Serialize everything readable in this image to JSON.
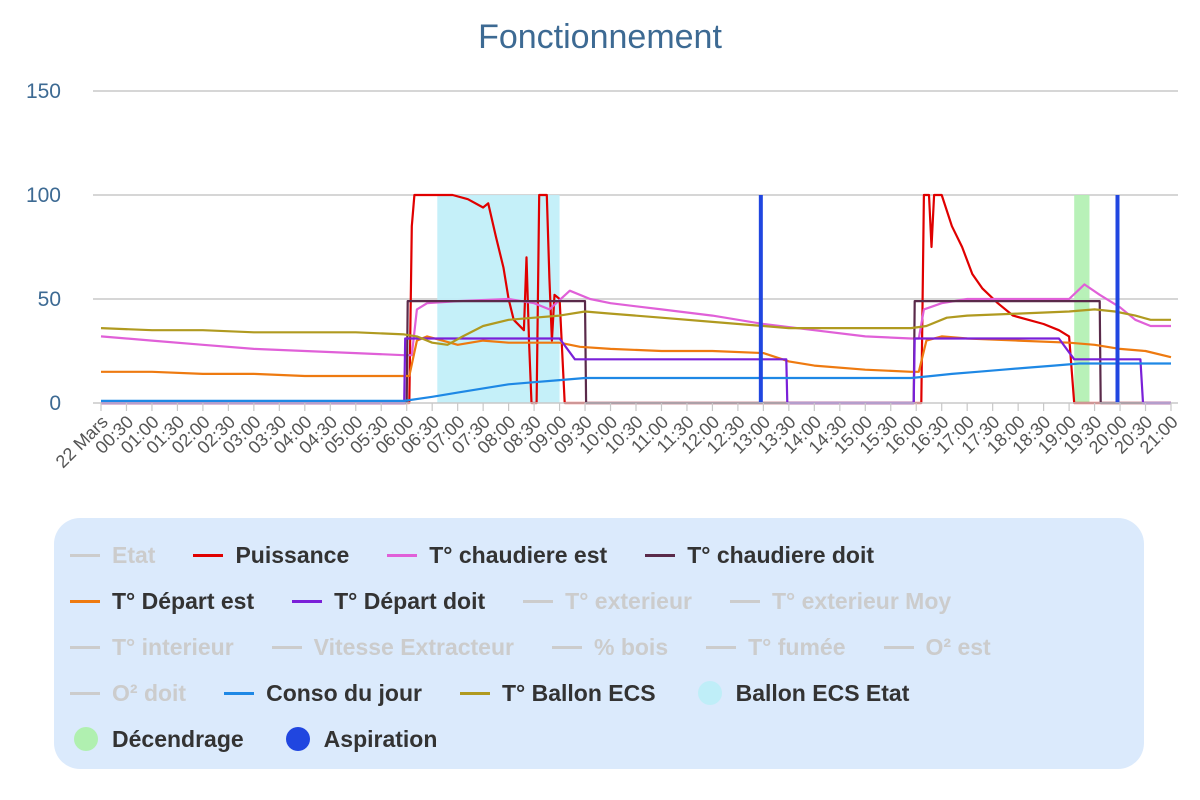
{
  "chart_data": {
    "type": "line",
    "title": "Fonctionnement",
    "ylim": [
      0,
      150
    ],
    "y_ticks": [
      0,
      50,
      100,
      150
    ],
    "x_tick_labels": [
      "22 Mars",
      "00:30",
      "01:00",
      "01:30",
      "02:00",
      "02:30",
      "03:00",
      "03:30",
      "04:00",
      "04:30",
      "05:00",
      "05:30",
      "06:00",
      "06:30",
      "07:00",
      "07:30",
      "08:00",
      "08:30",
      "09:00",
      "09:30",
      "10:00",
      "10:30",
      "11:00",
      "11:30",
      "12:00",
      "12:30",
      "13:00",
      "13:30",
      "14:00",
      "14:30",
      "15:00",
      "15:30",
      "16:00",
      "16:30",
      "17:00",
      "17:30",
      "18:00",
      "18:30",
      "19:00",
      "19:30",
      "20:00",
      "20:30",
      "21:00"
    ],
    "x_unit": "hours",
    "xlim": [
      0,
      21
    ],
    "grid": true,
    "legend_placement": "bottom",
    "series": [
      {
        "name": "Etat",
        "color": "#cccccc",
        "visible": false,
        "points": []
      },
      {
        "name": "Puissance",
        "color": "#e00000",
        "visible": true,
        "points": [
          [
            0,
            0
          ],
          [
            6.05,
            0
          ],
          [
            6.1,
            85
          ],
          [
            6.15,
            100
          ],
          [
            6.9,
            100
          ],
          [
            7.2,
            98
          ],
          [
            7.5,
            94
          ],
          [
            7.6,
            96
          ],
          [
            7.75,
            80
          ],
          [
            7.9,
            65
          ],
          [
            8.0,
            50
          ],
          [
            8.1,
            40
          ],
          [
            8.3,
            35
          ],
          [
            8.35,
            70
          ],
          [
            8.4,
            30
          ],
          [
            8.45,
            0
          ],
          [
            8.55,
            0
          ],
          [
            8.6,
            100
          ],
          [
            8.75,
            100
          ],
          [
            8.8,
            60
          ],
          [
            8.85,
            30
          ],
          [
            8.9,
            52
          ],
          [
            9.0,
            50
          ],
          [
            9.1,
            0
          ],
          [
            16.1,
            0
          ],
          [
            16.15,
            100
          ],
          [
            16.25,
            100
          ],
          [
            16.3,
            75
          ],
          [
            16.35,
            100
          ],
          [
            16.5,
            100
          ],
          [
            16.7,
            85
          ],
          [
            16.9,
            75
          ],
          [
            17.1,
            62
          ],
          [
            17.3,
            55
          ],
          [
            17.6,
            48
          ],
          [
            17.9,
            42
          ],
          [
            18.2,
            40
          ],
          [
            18.5,
            38
          ],
          [
            18.8,
            35
          ],
          [
            19.0,
            32
          ],
          [
            19.1,
            0
          ],
          [
            21,
            0
          ]
        ]
      },
      {
        "name": "T° chaudiere est",
        "color": "#e060d8",
        "visible": true,
        "points": [
          [
            0,
            32
          ],
          [
            1,
            30
          ],
          [
            2,
            28
          ],
          [
            3,
            26
          ],
          [
            4,
            25
          ],
          [
            5,
            24
          ],
          [
            5.95,
            23
          ],
          [
            6.1,
            23
          ],
          [
            6.2,
            45
          ],
          [
            6.4,
            48
          ],
          [
            7.0,
            49
          ],
          [
            8.0,
            50
          ],
          [
            8.5,
            48
          ],
          [
            8.8,
            45
          ],
          [
            9.2,
            54
          ],
          [
            9.6,
            50
          ],
          [
            10,
            48
          ],
          [
            11,
            45
          ],
          [
            12,
            42
          ],
          [
            13,
            38
          ],
          [
            14,
            35
          ],
          [
            15,
            32
          ],
          [
            15.9,
            31
          ],
          [
            16.05,
            31
          ],
          [
            16.15,
            45
          ],
          [
            16.5,
            48
          ],
          [
            17.0,
            50
          ],
          [
            18,
            50
          ],
          [
            19,
            50
          ],
          [
            19.3,
            57
          ],
          [
            19.6,
            52
          ],
          [
            20,
            46
          ],
          [
            20.3,
            40
          ],
          [
            20.6,
            37
          ],
          [
            21,
            37
          ]
        ]
      },
      {
        "name": "T° chaudiere doit",
        "color": "#5a2a4a",
        "visible": true,
        "points": [
          [
            0,
            0
          ],
          [
            6.0,
            0
          ],
          [
            6.02,
            49
          ],
          [
            9.5,
            49
          ],
          [
            9.52,
            0
          ],
          [
            15.95,
            0
          ],
          [
            15.97,
            49
          ],
          [
            19.6,
            49
          ],
          [
            19.62,
            0
          ],
          [
            21,
            0
          ]
        ]
      },
      {
        "name": "T° Départ est",
        "color": "#ee7a10",
        "visible": true,
        "points": [
          [
            0,
            15
          ],
          [
            1,
            15
          ],
          [
            2,
            14
          ],
          [
            3,
            14
          ],
          [
            4,
            13
          ],
          [
            5,
            13
          ],
          [
            5.95,
            13
          ],
          [
            6.05,
            13
          ],
          [
            6.2,
            30
          ],
          [
            6.4,
            32
          ],
          [
            6.7,
            30
          ],
          [
            7.0,
            28
          ],
          [
            7.5,
            30
          ],
          [
            8,
            29
          ],
          [
            9,
            29
          ],
          [
            9.4,
            27
          ],
          [
            10,
            26
          ],
          [
            11,
            25
          ],
          [
            12,
            25
          ],
          [
            13,
            24
          ],
          [
            13.5,
            20
          ],
          [
            14,
            18
          ],
          [
            15,
            16
          ],
          [
            15.9,
            15
          ],
          [
            16.05,
            15
          ],
          [
            16.2,
            30
          ],
          [
            16.5,
            32
          ],
          [
            17,
            31
          ],
          [
            18,
            30
          ],
          [
            19,
            29
          ],
          [
            19.5,
            28
          ],
          [
            20,
            26
          ],
          [
            20.5,
            25
          ],
          [
            21,
            22
          ]
        ]
      },
      {
        "name": "T° Départ doit",
        "color": "#7a20d8",
        "visible": true,
        "points": [
          [
            0,
            0
          ],
          [
            5.95,
            0
          ],
          [
            5.97,
            31
          ],
          [
            9.0,
            31
          ],
          [
            9.3,
            21
          ],
          [
            13.45,
            21
          ],
          [
            13.47,
            0
          ],
          [
            15.95,
            0
          ],
          [
            15.97,
            31
          ],
          [
            18.8,
            31
          ],
          [
            19.1,
            21
          ],
          [
            20.4,
            21
          ],
          [
            20.45,
            0
          ],
          [
            21,
            0
          ]
        ]
      },
      {
        "name": "T° exterieur",
        "color": "#cccccc",
        "visible": false,
        "points": []
      },
      {
        "name": "T° exterieur Moy",
        "color": "#cccccc",
        "visible": false,
        "points": []
      },
      {
        "name": "T° interieur",
        "color": "#cccccc",
        "visible": false,
        "points": []
      },
      {
        "name": "Vitesse Extracteur",
        "color": "#cccccc",
        "visible": false,
        "points": []
      },
      {
        "name": "% bois",
        "color": "#cccccc",
        "visible": false,
        "points": []
      },
      {
        "name": "T° fumée",
        "color": "#cccccc",
        "visible": false,
        "points": []
      },
      {
        "name": "O² est",
        "color": "#cccccc",
        "visible": false,
        "points": []
      },
      {
        "name": "O² doit",
        "color": "#cccccc",
        "visible": false,
        "points": []
      },
      {
        "name": "Conso du jour",
        "color": "#1e88e5",
        "visible": true,
        "points": [
          [
            0,
            1
          ],
          [
            5.95,
            1
          ],
          [
            6.5,
            3
          ],
          [
            7,
            5
          ],
          [
            7.5,
            7
          ],
          [
            8,
            9
          ],
          [
            8.5,
            10
          ],
          [
            9,
            11
          ],
          [
            9.5,
            12
          ],
          [
            13,
            12
          ],
          [
            15.9,
            12
          ],
          [
            16.3,
            13
          ],
          [
            16.7,
            14
          ],
          [
            17.2,
            15
          ],
          [
            17.7,
            16
          ],
          [
            18.2,
            17
          ],
          [
            18.7,
            18
          ],
          [
            19.2,
            19
          ],
          [
            21,
            19
          ]
        ]
      },
      {
        "name": "T° Ballon ECS",
        "color": "#b09a20",
        "visible": true,
        "points": [
          [
            0,
            36
          ],
          [
            1,
            35
          ],
          [
            2,
            35
          ],
          [
            3,
            34
          ],
          [
            4,
            34
          ],
          [
            5,
            34
          ],
          [
            5.95,
            33
          ],
          [
            6.2,
            32
          ],
          [
            6.5,
            29
          ],
          [
            6.8,
            28
          ],
          [
            7.1,
            32
          ],
          [
            7.5,
            37
          ],
          [
            8,
            40
          ],
          [
            8.5,
            41
          ],
          [
            9,
            42
          ],
          [
            9.5,
            44
          ],
          [
            10,
            43
          ],
          [
            11,
            41
          ],
          [
            12,
            39
          ],
          [
            13,
            37
          ],
          [
            13.5,
            36
          ],
          [
            14,
            36
          ],
          [
            15,
            36
          ],
          [
            15.9,
            36
          ],
          [
            16.2,
            37
          ],
          [
            16.6,
            41
          ],
          [
            17,
            42
          ],
          [
            18,
            43
          ],
          [
            19,
            44
          ],
          [
            19.5,
            45
          ],
          [
            19.9,
            44
          ],
          [
            20.3,
            42
          ],
          [
            20.6,
            40
          ],
          [
            21,
            40
          ]
        ]
      },
      {
        "name": "Ballon ECS Etat",
        "color": "#bfeef8",
        "visible": true,
        "bands": [
          [
            6.6,
            9.0
          ]
        ]
      },
      {
        "name": "Décendrage",
        "color": "#b0f0b0",
        "visible": true,
        "bands": [
          [
            19.1,
            19.4
          ]
        ]
      },
      {
        "name": "Aspiration",
        "color": "#2046e0",
        "visible": true,
        "spikes": [
          12.95,
          19.95
        ]
      }
    ]
  },
  "legend_rows": [
    [
      "Etat",
      "Puissance",
      "T° chaudiere est",
      "T° chaudiere doit"
    ],
    [
      "T° Départ est",
      "T° Départ doit",
      "T° exterieur",
      "T° exterieur Moy"
    ],
    [
      "T° interieur",
      "Vitesse Extracteur",
      "% bois",
      "T° fumée",
      "O² est"
    ],
    [
      "O² doit",
      "Conso du jour",
      "T° Ballon ECS",
      "Ballon ECS Etat"
    ],
    [
      "Décendrage",
      "Aspiration"
    ]
  ]
}
